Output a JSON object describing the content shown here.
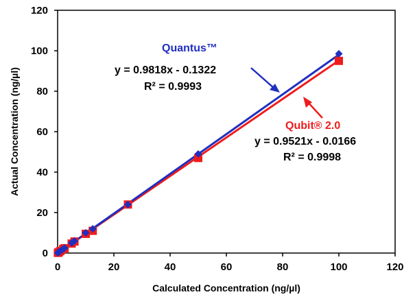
{
  "chart_data": {
    "type": "scatter",
    "xlabel": "Calculated Concentration (ng/µl)",
    "ylabel": "Actual Concentration (ng/µl)",
    "xlim": [
      0,
      120
    ],
    "ylim": [
      0,
      120
    ],
    "xticks": [
      0,
      20,
      40,
      60,
      80,
      100,
      120
    ],
    "yticks": [
      0,
      20,
      40,
      60,
      80,
      100,
      120
    ],
    "grid": false,
    "legend": "none",
    "series": [
      {
        "name": "Quantus™",
        "color": "#1f2fbf",
        "marker": "diamond",
        "x": [
          0.1,
          0.2,
          0.5,
          1,
          2,
          2.5,
          5,
          6,
          10,
          12.5,
          25,
          50,
          100
        ],
        "y": [
          0.1,
          0.3,
          0.5,
          1,
          2,
          2.5,
          5,
          6,
          10,
          12,
          24,
          49,
          98.5
        ],
        "trendline": {
          "slope": 0.9818,
          "intercept": -0.1322
        },
        "equation": "y = 0.9818x  - 0.1322",
        "r2": "R² = 0.9993"
      },
      {
        "name": "Qubit® 2.0",
        "color": "#ee1c1c",
        "marker": "square",
        "x": [
          0.1,
          0.2,
          0.5,
          1,
          2,
          2.5,
          5,
          6,
          10,
          12.5,
          25,
          50,
          100
        ],
        "y": [
          0.1,
          0.2,
          0.5,
          1,
          2,
          2.4,
          4.7,
          5.7,
          9.5,
          11,
          24,
          47,
          95
        ],
        "trendline": {
          "slope": 0.9521,
          "intercept": -0.0166
        },
        "equation": "y = 0.9521x  - 0.0166",
        "r2": "R² = 0.9998"
      }
    ]
  }
}
